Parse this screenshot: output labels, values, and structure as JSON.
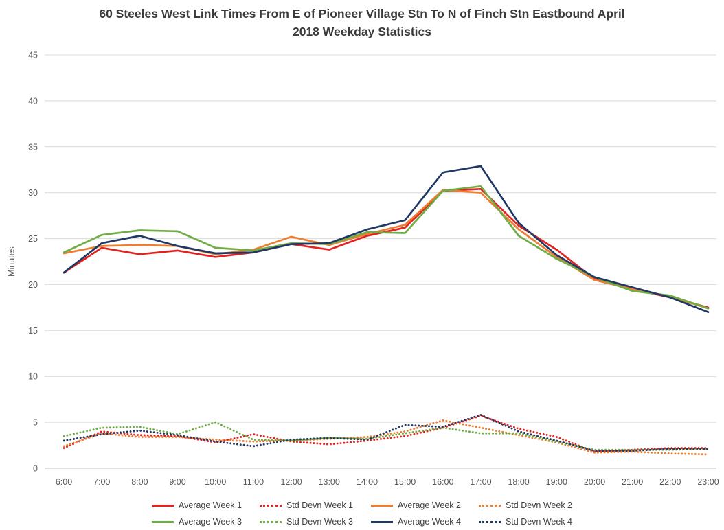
{
  "colors": {
    "background": "#ffffff",
    "grid": "#d9d9d9",
    "axis_line": "#bfbfbf",
    "axis_text": "#595959",
    "title_text": "#3b3b3b",
    "red": "#e32222",
    "orange": "#ed7d31",
    "green": "#70ad47",
    "navy": "#1f3864"
  },
  "chart_data": {
    "type": "line",
    "title": "60 Steeles West Link Times From E of Pioneer Village Stn To N of Finch Stn Eastbound April 2018 Weekday Statistics",
    "title_lines": [
      "60 Steeles West Link Times From E of Pioneer Village Stn To N of Finch Stn Eastbound April",
      "2018 Weekday Statistics"
    ],
    "xlabel": "",
    "ylabel": "Minutes",
    "ylim": [
      0,
      45
    ],
    "yticks": [
      0,
      5,
      10,
      15,
      20,
      25,
      30,
      35,
      40,
      45
    ],
    "grid": "horizontal",
    "legend_position": "bottom",
    "categories": [
      "6:00",
      "7:00",
      "8:00",
      "9:00",
      "10:00",
      "11:00",
      "12:00",
      "13:00",
      "14:00",
      "15:00",
      "16:00",
      "17:00",
      "18:00",
      "19:00",
      "20:00",
      "21:00",
      "22:00",
      "23:00"
    ],
    "series": [
      {
        "name": "Average Week 1",
        "style": "solid",
        "color": "#e32222",
        "values": [
          21.3,
          24.0,
          23.3,
          23.7,
          23.0,
          23.5,
          24.4,
          23.8,
          25.3,
          26.2,
          30.2,
          30.4,
          26.4,
          23.8,
          20.6,
          19.5,
          18.6,
          17.5
        ]
      },
      {
        "name": "Std Devn Week 1",
        "style": "dotted",
        "color": "#e32222",
        "values": [
          2.2,
          4.0,
          3.6,
          3.5,
          2.8,
          3.7,
          2.9,
          2.6,
          3.0,
          3.5,
          4.4,
          5.7,
          4.3,
          3.4,
          1.8,
          2.0,
          2.2,
          2.2
        ]
      },
      {
        "name": "Average Week 2",
        "style": "solid",
        "color": "#ed7d31",
        "values": [
          23.4,
          24.2,
          24.3,
          24.2,
          23.3,
          23.8,
          25.2,
          24.3,
          25.5,
          26.5,
          30.3,
          30.0,
          26.0,
          23.0,
          20.5,
          19.5,
          18.7,
          17.4
        ]
      },
      {
        "name": "Std Devn Week 2",
        "style": "dotted",
        "color": "#ed7d31",
        "values": [
          2.4,
          3.8,
          3.4,
          3.4,
          3.1,
          2.9,
          3.0,
          3.2,
          3.4,
          4.0,
          5.2,
          4.4,
          3.6,
          2.8,
          1.7,
          1.8,
          1.6,
          1.5
        ]
      },
      {
        "name": "Average Week 3",
        "style": "solid",
        "color": "#70ad47",
        "values": [
          23.5,
          25.4,
          25.9,
          25.8,
          24.0,
          23.7,
          24.5,
          24.4,
          25.7,
          25.6,
          30.2,
          30.7,
          25.3,
          22.8,
          20.8,
          19.3,
          18.8,
          17.4
        ]
      },
      {
        "name": "Std Devn Week 3",
        "style": "dotted",
        "color": "#70ad47",
        "values": [
          3.5,
          4.4,
          4.5,
          3.7,
          5.0,
          3.1,
          3.0,
          3.3,
          3.2,
          3.8,
          4.4,
          3.8,
          3.8,
          2.9,
          2.0,
          2.0,
          2.0,
          2.1
        ]
      },
      {
        "name": "Average Week 4",
        "style": "solid",
        "color": "#1f3864",
        "values": [
          21.3,
          24.5,
          25.3,
          24.2,
          23.4,
          23.5,
          24.4,
          24.5,
          26.0,
          27.0,
          32.2,
          32.9,
          26.7,
          23.2,
          20.8,
          19.7,
          18.6,
          17.0
        ]
      },
      {
        "name": "Std Devn Week 4",
        "style": "dotted",
        "color": "#1f3864",
        "values": [
          3.0,
          3.7,
          4.1,
          3.6,
          2.9,
          2.4,
          3.1,
          3.3,
          3.1,
          4.7,
          4.5,
          5.8,
          4.0,
          3.0,
          1.9,
          1.9,
          2.1,
          2.1
        ]
      }
    ]
  }
}
